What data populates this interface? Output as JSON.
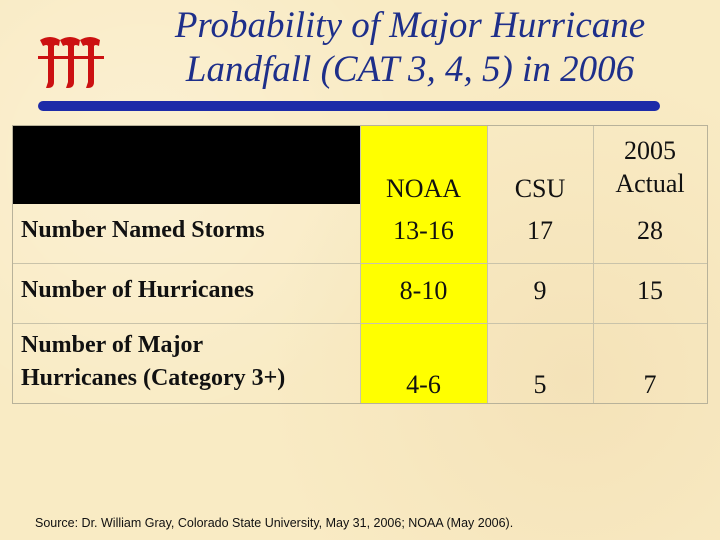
{
  "logo": {
    "icon": "three-t-red-logo-icon",
    "color": "#cc1111"
  },
  "title": {
    "line1": "Probability of Major Hurricane",
    "line2": "Landfall (CAT 3, 4, 5) in 2006",
    "color": "#1e2f8a"
  },
  "table": {
    "headers": {
      "noaa": "NOAA",
      "csu": "CSU",
      "actual_line1": "2005",
      "actual_line2": "Actual"
    },
    "rows": [
      {
        "label_line1": "Number Named Storms",
        "label_line2": "",
        "noaa": "13-16",
        "csu": "17",
        "actual": "28"
      },
      {
        "label_line1": "Number of Hurricanes",
        "label_line2": "",
        "noaa": "8-10",
        "csu": "9",
        "actual": "15"
      },
      {
        "label_line1": "Number of Major",
        "label_line2": "Hurricanes (Category 3+)",
        "noaa": "4-6",
        "csu": "5",
        "actual": "7"
      }
    ],
    "noaa_highlight_color": "#ffff00"
  },
  "source": "Source: Dr. William Gray, Colorado State University, May 31, 2006; NOAA (May 2006)."
}
